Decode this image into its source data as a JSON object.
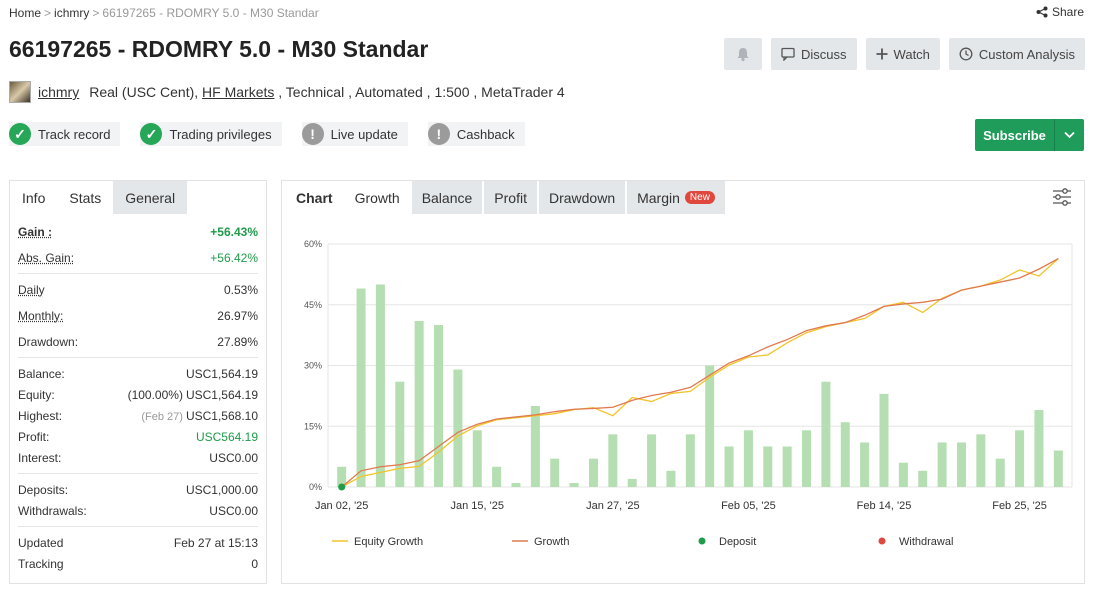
{
  "breadcrumb": {
    "home": "Home",
    "user": "ichmry",
    "current": "66197265 - RDOMRY 5.0 - M30 Standar",
    "sep": ">"
  },
  "share": "Share",
  "title": "66197265 - RDOMRY 5.0 - M30 Standar",
  "actions": {
    "discuss": "Discuss",
    "watch": "Watch",
    "custom": "Custom Analysis"
  },
  "meta": {
    "user": "ichmry",
    "account": "Real (USC Cent),",
    "broker": "HF Markets",
    "rest": ", Technical , Automated , 1:500 , MetaTrader 4"
  },
  "badges": [
    "Track record",
    "Trading privileges",
    "Live update",
    "Cashback"
  ],
  "subscribe": "Subscribe",
  "left_tabs": [
    "Info",
    "Stats",
    "General"
  ],
  "stats": {
    "gain_l": "Gain :",
    "gain_v": "+56.43%",
    "absgain_l": "Abs. Gain:",
    "absgain_v": "+56.42%",
    "daily_l": "Daily",
    "daily_v": "0.53%",
    "monthly_l": "Monthly:",
    "monthly_v": "26.97%",
    "drawdown_l": "Drawdown:",
    "drawdown_v": "27.89%",
    "balance_l": "Balance:",
    "balance_v": "USC1,564.19",
    "equity_l": "Equity:",
    "equity_pre": "(100.00%)",
    "equity_v": "USC1,564.19",
    "highest_l": "Highest:",
    "highest_pre": "(Feb 27)",
    "highest_v": "USC1,568.10",
    "profit_l": "Profit:",
    "profit_v": "USC564.19",
    "interest_l": "Interest:",
    "interest_v": "USC0.00",
    "deposits_l": "Deposits:",
    "deposits_v": "USC1,000.00",
    "withdrawals_l": "Withdrawals:",
    "withdrawals_v": "USC0.00",
    "updated_l": "Updated",
    "updated_v": "Feb 27 at 15:13",
    "tracking_l": "Tracking",
    "tracking_v": "0"
  },
  "chart_tabs": {
    "chart": "Chart",
    "growth": "Growth",
    "balance": "Balance",
    "profit": "Profit",
    "drawdown": "Drawdown",
    "margin": "Margin",
    "new": "New"
  },
  "colors": {
    "green": "#26a657",
    "bar": "#b5dfb2",
    "growth": "#e07a4f",
    "equity": "#f2c42b",
    "deposit": "#1f9b4a",
    "withdrawal": "#e0483e"
  },
  "chart_data": {
    "type": "line",
    "y_ticks": [
      "0%",
      "15%",
      "30%",
      "45%",
      "60%"
    ],
    "ylim": [
      0,
      60
    ],
    "x_ticks": [
      "Jan 02, '25",
      "Jan 15, '25",
      "Jan 27, '25",
      "Feb 05, '25",
      "Feb 14, '25",
      "Feb 25, '25"
    ],
    "bars": [
      5,
      49,
      50,
      26,
      41,
      40,
      29,
      14,
      5,
      1,
      20,
      7,
      1,
      7,
      13,
      2,
      13,
      4,
      13,
      30,
      10,
      14,
      10,
      10,
      14,
      26,
      16,
      11,
      23,
      6,
      4,
      11,
      11,
      13,
      7,
      14,
      19,
      9
    ],
    "growth": [
      0,
      4,
      5,
      5.5,
      6.5,
      10,
      13.5,
      15.5,
      16.8,
      17.3,
      17.8,
      18.6,
      19.2,
      19.4,
      19.7,
      21.4,
      22.6,
      23.4,
      24.6,
      27.6,
      30.6,
      32.4,
      34.6,
      36.4,
      38.6,
      39.8,
      40.6,
      42.4,
      44.6,
      45.2,
      45.6,
      46.4,
      48.6,
      49.6,
      50.6,
      51.6,
      53.8,
      56.4
    ],
    "equity": [
      0,
      2.6,
      3.6,
      4.6,
      5.1,
      8.6,
      12.6,
      15.1,
      16.6,
      17.1,
      17.6,
      18.1,
      19.1,
      19.6,
      17.6,
      22.1,
      21.1,
      23.1,
      23.6,
      27.1,
      30.1,
      32.1,
      32.6,
      35.6,
      38.1,
      39.6,
      40.6,
      41.6,
      44.6,
      45.6,
      43.1,
      46.6,
      48.6,
      49.6,
      51.1,
      53.6,
      52.1,
      56.4
    ],
    "series_labels": {
      "equity": "Equity Growth",
      "growth": "Growth",
      "deposit": "Deposit",
      "withdrawal": "Withdrawal"
    },
    "legend": "bottom"
  }
}
